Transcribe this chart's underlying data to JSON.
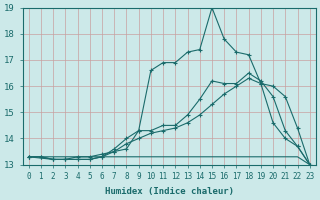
{
  "xlabel": "Humidex (Indice chaleur)",
  "background_color": "#cce9e9",
  "grid_color": "#c8a0a0",
  "line_color": "#1a6b6b",
  "xlim": [
    -0.5,
    23.5
  ],
  "ylim": [
    13,
    19
  ],
  "xticks": [
    0,
    1,
    2,
    3,
    4,
    5,
    6,
    7,
    8,
    9,
    10,
    11,
    12,
    13,
    14,
    15,
    16,
    17,
    18,
    19,
    20,
    21,
    22,
    23
  ],
  "yticks": [
    13,
    14,
    15,
    16,
    17,
    18,
    19
  ],
  "line1_x": [
    0,
    1,
    2,
    3,
    4,
    5,
    6,
    7,
    8,
    9,
    10,
    11,
    12,
    13,
    14,
    15,
    16,
    17,
    18,
    19,
    20,
    21,
    22,
    23
  ],
  "line1_y": [
    13.3,
    13.3,
    13.3,
    13.3,
    13.3,
    13.3,
    13.3,
    13.3,
    13.3,
    13.3,
    13.3,
    13.3,
    13.3,
    13.3,
    13.3,
    13.3,
    13.3,
    13.3,
    13.3,
    13.3,
    13.3,
    13.3,
    13.3,
    13.0
  ],
  "line2_x": [
    0,
    1,
    2,
    3,
    4,
    5,
    6,
    7,
    8,
    9,
    10,
    11,
    12,
    13,
    14,
    15,
    16,
    17,
    18,
    19,
    20,
    21,
    22,
    23
  ],
  "line2_y": [
    13.3,
    13.3,
    13.2,
    13.2,
    13.3,
    13.3,
    13.4,
    13.5,
    13.8,
    14.0,
    14.2,
    14.3,
    14.4,
    14.6,
    14.9,
    15.3,
    15.7,
    16.0,
    16.3,
    16.1,
    16.0,
    15.6,
    14.4,
    13.0
  ],
  "line3_x": [
    0,
    2,
    3,
    4,
    5,
    6,
    7,
    8,
    9,
    10,
    11,
    12,
    13,
    14,
    15,
    16,
    17,
    18,
    19,
    20,
    21,
    22,
    23
  ],
  "line3_y": [
    13.3,
    13.2,
    13.2,
    13.2,
    13.2,
    13.3,
    13.6,
    14.0,
    14.3,
    14.3,
    14.5,
    14.5,
    14.9,
    15.5,
    16.2,
    16.1,
    16.1,
    16.5,
    16.2,
    15.6,
    14.3,
    13.7,
    13.0
  ],
  "line4_x": [
    0,
    1,
    2,
    3,
    4,
    5,
    6,
    7,
    8,
    9,
    10,
    11,
    12,
    13,
    14,
    15,
    16,
    17,
    18,
    19,
    20,
    21,
    22,
    23
  ],
  "line4_y": [
    13.3,
    13.3,
    13.2,
    13.2,
    13.2,
    13.2,
    13.3,
    13.5,
    13.6,
    14.3,
    16.6,
    16.9,
    16.9,
    17.3,
    17.4,
    19.0,
    17.8,
    17.3,
    17.2,
    16.1,
    14.6,
    14.0,
    13.7,
    13.0
  ],
  "marker_lines": [
    3,
    4
  ],
  "figsize": [
    3.2,
    2.0
  ],
  "dpi": 100
}
